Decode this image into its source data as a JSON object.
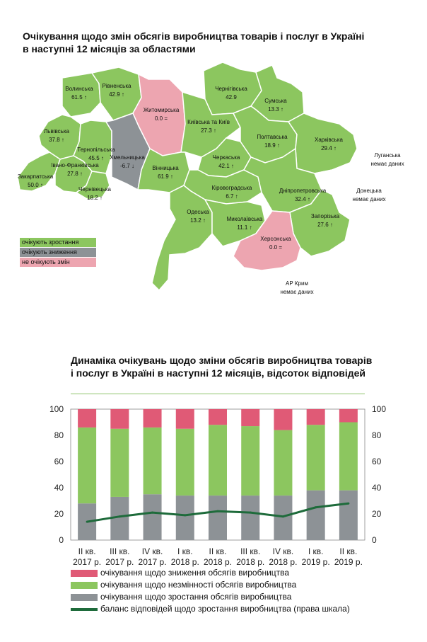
{
  "map": {
    "title_line1": "Очікування щодо змін обсягів виробництва товарів і послуг в Україні",
    "title_line2": "в наступні 12 місяців за областями",
    "colors": {
      "growth": "#8cc65f",
      "decline": "#8d9296",
      "nochange": "#eda5b0",
      "nodata": "#ffffff"
    },
    "legend": {
      "growth": "очікують зростання",
      "decline": "очікують зниження",
      "nochange": "не очікують змін"
    },
    "regions": [
      {
        "id": "volyn",
        "name": "Волинська",
        "value": "61.5 ↑",
        "status": "growth"
      },
      {
        "id": "rivne",
        "name": "Рівненська",
        "value": "42.9 ↑",
        "status": "growth"
      },
      {
        "id": "zhytomyr",
        "name": "Житомирська",
        "value": "0.0 =",
        "status": "nochange"
      },
      {
        "id": "chernihiv",
        "name": "Чернігівська",
        "value": "42.9",
        "status": "growth"
      },
      {
        "id": "sumy",
        "name": "Сумська",
        "value": "13.3 ↑",
        "status": "growth"
      },
      {
        "id": "lviv",
        "name": "Львівська",
        "value": "37.8 ↑",
        "status": "growth"
      },
      {
        "id": "ternopil",
        "name": "Тернопільська",
        "value": "45.5 ↑",
        "status": "growth"
      },
      {
        "id": "khmelnytskyi",
        "name": "Хмельницька",
        "value": "-6.7 ↓",
        "status": "decline"
      },
      {
        "id": "kyiv",
        "name": "Київська та Київ",
        "value": "27.3 ↑",
        "status": "growth"
      },
      {
        "id": "poltava",
        "name": "Полтавська",
        "value": "18.9 ↑",
        "status": "growth"
      },
      {
        "id": "kharkiv",
        "name": "Харківська",
        "value": "29.4 ↑",
        "status": "growth"
      },
      {
        "id": "luhansk",
        "name": "Луганська",
        "value": "немає даних",
        "status": "nodata"
      },
      {
        "id": "zakarpattia",
        "name": "Закарпатська",
        "value": "50.0 ↑",
        "status": "growth"
      },
      {
        "id": "ivano",
        "name": "Івано-Франківська",
        "value": "27.8 ↑",
        "status": "growth"
      },
      {
        "id": "chernivtsi",
        "name": "Чернівецька",
        "value": "18.2 ↑",
        "status": "growth"
      },
      {
        "id": "vinnytsia",
        "name": "Вінницька",
        "value": "61.9 ↑",
        "status": "growth"
      },
      {
        "id": "cherkasy",
        "name": "Черкаська",
        "value": "42.1 ↑",
        "status": "growth"
      },
      {
        "id": "kirovohrad",
        "name": "Кіровоградська",
        "value": "6.7 ↑",
        "status": "growth"
      },
      {
        "id": "dnipro",
        "name": "Дніпропетровська",
        "value": "32.4 ↑",
        "status": "growth"
      },
      {
        "id": "donetsk",
        "name": "Донецька",
        "value": "немає даних",
        "status": "nodata"
      },
      {
        "id": "odesa",
        "name": "Одеська",
        "value": "13.2 ↑",
        "status": "growth"
      },
      {
        "id": "mykolaiv",
        "name": "Миколаївська",
        "value": "11.1 ↑",
        "status": "growth"
      },
      {
        "id": "zaporizhzhia",
        "name": "Запорізька",
        "value": "27.6 ↑",
        "status": "growth"
      },
      {
        "id": "kherson",
        "name": "Херсонська",
        "value": "0.0 =",
        "status": "nochange"
      },
      {
        "id": "crimea",
        "name": "АР Крим",
        "value": "немає даних",
        "status": "nodata"
      }
    ]
  },
  "chart_data": {
    "type": "bar",
    "title": "Динаміка очікувань щодо зміни обсягів виробництва товарів і послуг в Україні в наступні 12 місяців, відсоток відповідей",
    "categories": [
      [
        "II кв.",
        "2017 р."
      ],
      [
        "III кв.",
        "2017 р."
      ],
      [
        "IV кв.",
        "2017 р."
      ],
      [
        "I кв.",
        "2018 р."
      ],
      [
        "II кв.",
        "2018 р."
      ],
      [
        "III кв.",
        "2018 р."
      ],
      [
        "IV кв.",
        "2018 р."
      ],
      [
        "I кв.",
        "2019 р."
      ],
      [
        "II кв.",
        "2019 р."
      ]
    ],
    "stacked": true,
    "ylim": [
      0,
      100
    ],
    "y2lim": [
      0,
      100
    ],
    "yticks": [
      0,
      20,
      40,
      60,
      80,
      100
    ],
    "series": [
      {
        "name": "очікування щодо зростання обсягів виробництва",
        "color": "#8d9296",
        "values": [
          28,
          33,
          35,
          34,
          34,
          34,
          34,
          38,
          38
        ]
      },
      {
        "name": "очікування щодо незмінності обсягів виробництва",
        "color": "#8cc65f",
        "values": [
          58,
          52,
          51,
          51,
          54,
          53,
          50,
          50,
          52
        ]
      },
      {
        "name": "очікування щодо зниження обсягів виробництва",
        "color": "#e05a76",
        "values": [
          14,
          15,
          14,
          15,
          12,
          13,
          16,
          12,
          10
        ]
      }
    ],
    "line": {
      "name": "баланс відповідей щодо зростання виробництва (права шкала)",
      "color": "#1e6b3b",
      "values": [
        14,
        18,
        21,
        19,
        22,
        21,
        18,
        25,
        28
      ]
    },
    "legend_order": [
      2,
      1,
      0
    ]
  }
}
